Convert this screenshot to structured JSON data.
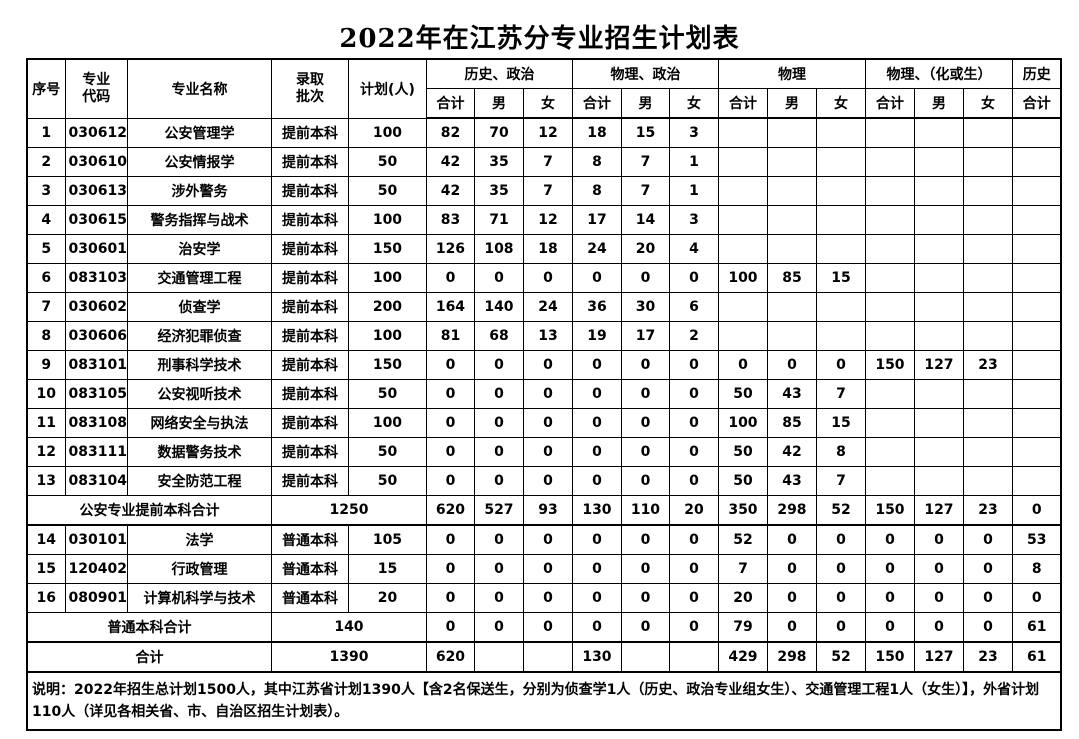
{
  "title": "2022年在江苏分专业招生计划表",
  "headers": {
    "no": "序号",
    "code": "专业代码",
    "name": "专业名称",
    "batch": "录取批次",
    "plan": "计划(人)",
    "groups": [
      "历史、政治",
      "物理、政治",
      "物理",
      "物理、（化或生）",
      "历史"
    ],
    "sub": [
      "合计",
      "男",
      "女",
      "合计",
      "男",
      "女",
      "合计",
      "男",
      "女",
      "合计",
      "男",
      "女",
      "合计"
    ]
  },
  "rows_a": [
    {
      "no": "1",
      "code": "030612",
      "name": "公安管理学",
      "batch": "提前本科",
      "plan": "100",
      "values": [
        "82",
        "70",
        "12",
        "18",
        "15",
        "3",
        "",
        "",
        "",
        "",
        "",
        "",
        ""
      ]
    },
    {
      "no": "2",
      "code": "030610",
      "name": "公安情报学",
      "batch": "提前本科",
      "plan": "50",
      "values": [
        "42",
        "35",
        "7",
        "8",
        "7",
        "1",
        "",
        "",
        "",
        "",
        "",
        "",
        ""
      ]
    },
    {
      "no": "3",
      "code": "030613",
      "name": "涉外警务",
      "batch": "提前本科",
      "plan": "50",
      "values": [
        "42",
        "35",
        "7",
        "8",
        "7",
        "1",
        "",
        "",
        "",
        "",
        "",
        "",
        ""
      ]
    },
    {
      "no": "4",
      "code": "030615",
      "name": "警务指挥与战术",
      "batch": "提前本科",
      "plan": "100",
      "values": [
        "83",
        "71",
        "12",
        "17",
        "14",
        "3",
        "",
        "",
        "",
        "",
        "",
        "",
        ""
      ]
    },
    {
      "no": "5",
      "code": "030601",
      "name": "治安学",
      "batch": "提前本科",
      "plan": "150",
      "values": [
        "126",
        "108",
        "18",
        "24",
        "20",
        "4",
        "",
        "",
        "",
        "",
        "",
        "",
        ""
      ]
    },
    {
      "no": "6",
      "code": "083103",
      "name": "交通管理工程",
      "batch": "提前本科",
      "plan": "100",
      "values": [
        "0",
        "0",
        "0",
        "0",
        "0",
        "0",
        "100",
        "85",
        "15",
        "",
        "",
        "",
        ""
      ]
    },
    {
      "no": "7",
      "code": "030602",
      "name": "侦查学",
      "batch": "提前本科",
      "plan": "200",
      "values": [
        "164",
        "140",
        "24",
        "36",
        "30",
        "6",
        "",
        "",
        "",
        "",
        "",
        "",
        ""
      ]
    },
    {
      "no": "8",
      "code": "030606",
      "name": "经济犯罪侦查",
      "batch": "提前本科",
      "plan": "100",
      "values": [
        "81",
        "68",
        "13",
        "19",
        "17",
        "2",
        "",
        "",
        "",
        "",
        "",
        "",
        ""
      ]
    },
    {
      "no": "9",
      "code": "083101",
      "name": "刑事科学技术",
      "batch": "提前本科",
      "plan": "150",
      "values": [
        "0",
        "0",
        "0",
        "0",
        "0",
        "0",
        "0",
        "0",
        "0",
        "150",
        "127",
        "23",
        ""
      ]
    },
    {
      "no": "10",
      "code": "083105",
      "name": "公安视听技术",
      "batch": "提前本科",
      "plan": "50",
      "values": [
        "0",
        "0",
        "0",
        "0",
        "0",
        "0",
        "50",
        "43",
        "7",
        "",
        "",
        "",
        ""
      ]
    },
    {
      "no": "11",
      "code": "083108",
      "name": "网络安全与执法",
      "batch": "提前本科",
      "plan": "100",
      "values": [
        "0",
        "0",
        "0",
        "0",
        "0",
        "0",
        "100",
        "85",
        "15",
        "",
        "",
        "",
        ""
      ]
    },
    {
      "no": "12",
      "code": "083111",
      "name": "数据警务技术",
      "batch": "提前本科",
      "plan": "50",
      "values": [
        "0",
        "0",
        "0",
        "0",
        "0",
        "0",
        "50",
        "42",
        "8",
        "",
        "",
        "",
        ""
      ]
    },
    {
      "no": "13",
      "code": "083104",
      "name": "安全防范工程",
      "batch": "提前本科",
      "plan": "50",
      "values": [
        "0",
        "0",
        "0",
        "0",
        "0",
        "0",
        "50",
        "43",
        "7",
        "",
        "",
        "",
        ""
      ]
    }
  ],
  "subtotal_a": {
    "label": "公安专业提前本科合计",
    "plan": "1250",
    "values": [
      "620",
      "527",
      "93",
      "130",
      "110",
      "20",
      "350",
      "298",
      "52",
      "150",
      "127",
      "23",
      "0"
    ]
  },
  "rows_b": [
    {
      "no": "14",
      "code": "030101",
      "name": "法学",
      "batch": "普通本科",
      "plan": "105",
      "values": [
        "0",
        "0",
        "0",
        "0",
        "0",
        "0",
        "52",
        "0",
        "0",
        "0",
        "0",
        "0",
        "53"
      ]
    },
    {
      "no": "15",
      "code": "120402",
      "name": "行政管理",
      "batch": "普通本科",
      "plan": "15",
      "values": [
        "0",
        "0",
        "0",
        "0",
        "0",
        "0",
        "7",
        "0",
        "0",
        "0",
        "0",
        "0",
        "8"
      ]
    },
    {
      "no": "16",
      "code": "080901",
      "name": "计算机科学与技术",
      "batch": "普通本科",
      "plan": "20",
      "values": [
        "0",
        "0",
        "0",
        "0",
        "0",
        "0",
        "20",
        "0",
        "0",
        "0",
        "0",
        "0",
        "0"
      ]
    }
  ],
  "subtotal_b": {
    "label": "普通本科合计",
    "plan": "140",
    "values": [
      "0",
      "0",
      "0",
      "0",
      "0",
      "0",
      "79",
      "0",
      "0",
      "0",
      "0",
      "0",
      "61"
    ]
  },
  "total": {
    "label": "合计",
    "plan": "1390",
    "values": [
      "620",
      "",
      "",
      "130",
      "",
      "",
      "429",
      "298",
      "52",
      "150",
      "127",
      "23",
      "61"
    ]
  },
  "note": "说明：2022年招生总计划1500人，其中江苏省计划1390人【含2名保送生，分别为侦查学1人（历史、政治专业组女生）、交通管理工程1人（女生）】，外省计划110人（详见各相关省、市、自治区招生计划表）。"
}
